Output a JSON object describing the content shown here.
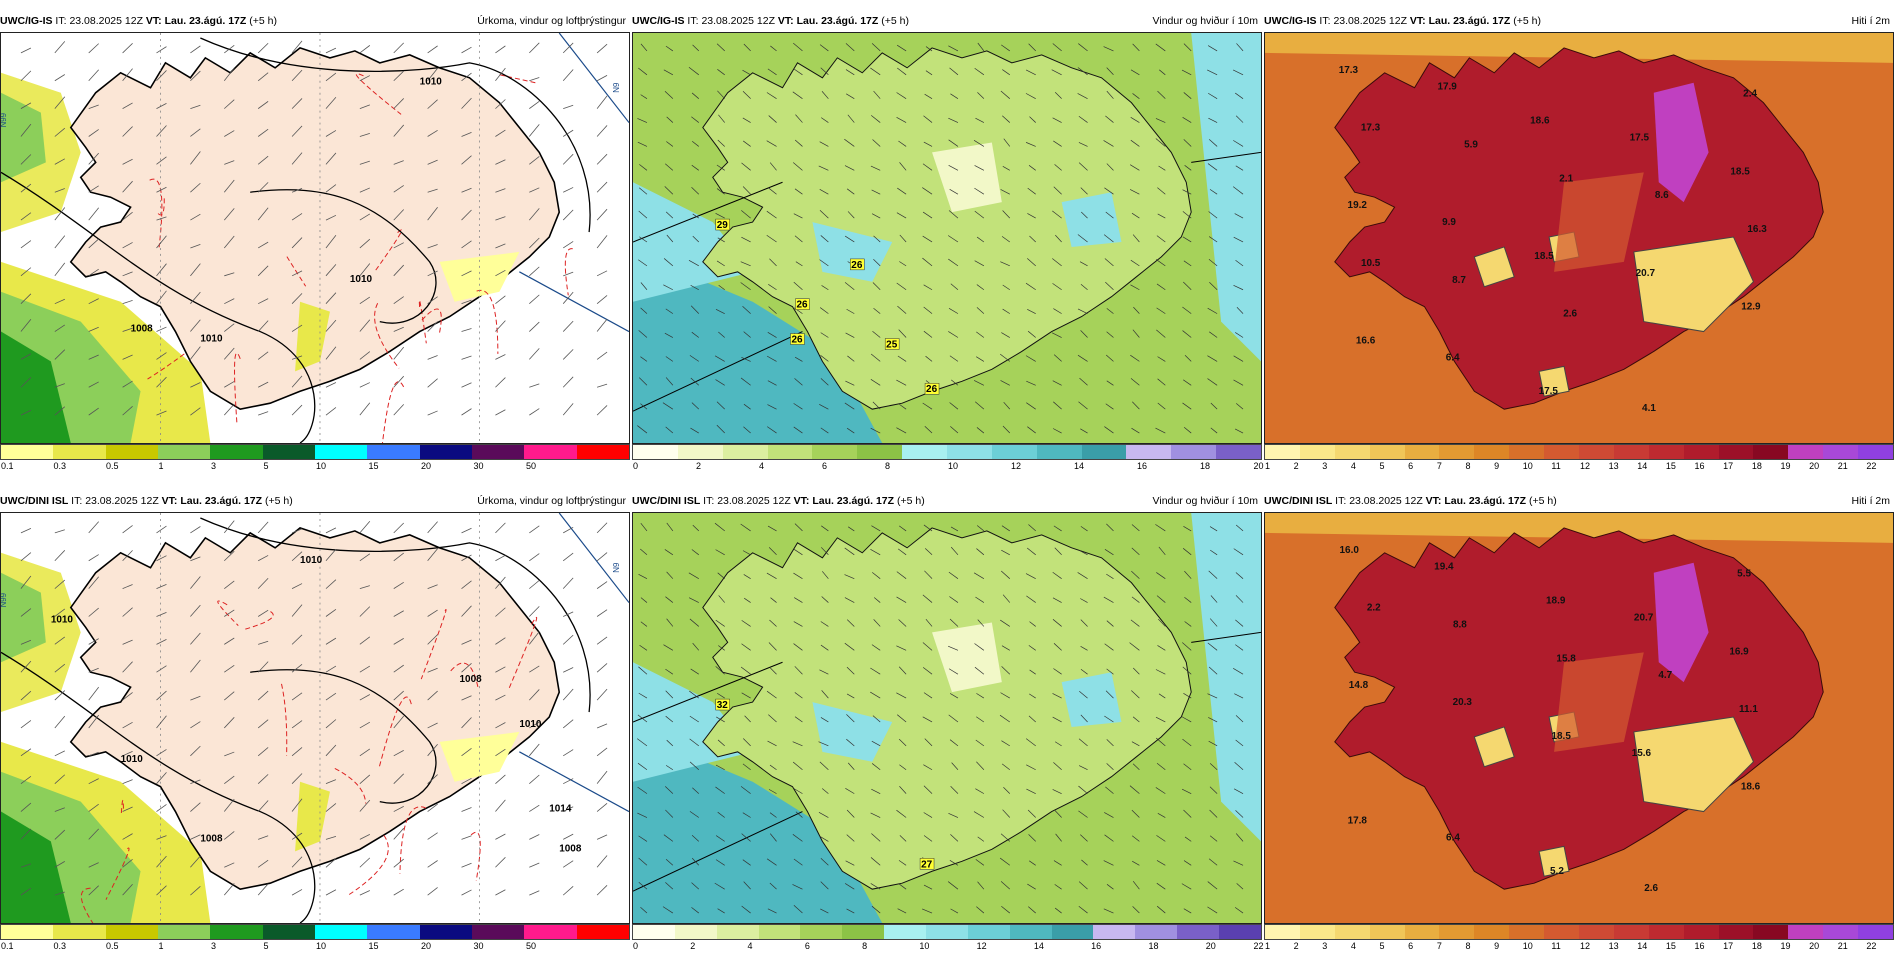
{
  "rows": [
    {
      "panels": [
        {
          "model": "UWC/IG-IS",
          "it_label": "IT:",
          "it": "23.08.2025 12Z",
          "vt_label": "VT:",
          "vt": "Lau. 23.ágú. 17Z",
          "lead": "(+5 h)",
          "param": "Úrkoma, vindur og loftþrýstingur"
        },
        {
          "model": "UWC/IG-IS",
          "it_label": "IT:",
          "it": "23.08.2025 12Z",
          "vt_label": "VT:",
          "vt": "Lau. 23.ágú. 17Z",
          "lead": "(+5 h)",
          "param": "Vindur og hviður í 10m"
        },
        {
          "model": "UWC/IG-IS",
          "it_label": "IT:",
          "it": "23.08.2025 12Z",
          "vt_label": "VT:",
          "vt": "Lau. 23.ágú. 17Z",
          "lead": "(+5 h)",
          "param": "Hiti í 2m"
        }
      ]
    },
    {
      "panels": [
        {
          "model": "UWC/DINI ISL",
          "it_label": "IT:",
          "it": "23.08.2025 12Z",
          "vt_label": "VT:",
          "vt": "Lau. 23.ágú. 17Z",
          "lead": "(+5 h)",
          "param": "Úrkoma, vindur og loftþrýstingur"
        },
        {
          "model": "UWC/DINI ISL",
          "it_label": "IT:",
          "it": "23.08.2025 12Z",
          "vt_label": "VT:",
          "vt": "Lau. 23.ágú. 17Z",
          "lead": "(+5 h)",
          "param": "Vindur og hviður í 10m"
        },
        {
          "model": "UWC/DINI ISL",
          "it_label": "IT:",
          "it": "23.08.2025 12Z",
          "vt_label": "VT:",
          "vt": "Lau. 23.ágú. 17Z",
          "lead": "(+5 h)",
          "param": "Hiti í 2m"
        }
      ]
    }
  ],
  "scales": {
    "precip": {
      "colors": [
        "#ffff99",
        "#e8e84a",
        "#c8c800",
        "#8ccf5a",
        "#1f9a1f",
        "#0a5a2a",
        "#00ffff",
        "#3a7bff",
        "#0a0a80",
        "#5a0a5a",
        "#ff1a8c",
        "#ff0000"
      ],
      "ticks": [
        "0.1",
        "0.3",
        "0.5",
        "1",
        "3",
        "5",
        "10",
        "15",
        "20",
        "30",
        "50"
      ]
    },
    "wind_top": {
      "colors": [
        "#ffffee",
        "#f2f8c8",
        "#dcefa0",
        "#c2e27a",
        "#a6d25a",
        "#8cc346",
        "#a8f0f0",
        "#8ee0e6",
        "#6ccfd6",
        "#4fb8c0",
        "#3a9ea8",
        "#c8b8f0",
        "#a090e0",
        "#7a60c8"
      ],
      "ticks": [
        "0",
        "2",
        "4",
        "6",
        "8",
        "10",
        "12",
        "14",
        "16",
        "18",
        "20"
      ]
    },
    "wind_bottom": {
      "colors": [
        "#ffffee",
        "#f2f8c8",
        "#dcefa0",
        "#c2e27a",
        "#a6d25a",
        "#8cc346",
        "#a8f0f0",
        "#8ee0e6",
        "#6ccfd6",
        "#4fb8c0",
        "#3a9ea8",
        "#c8b8f0",
        "#a090e0",
        "#7a60c8",
        "#5a40b0"
      ],
      "ticks": [
        "0",
        "2",
        "4",
        "6",
        "8",
        "10",
        "12",
        "14",
        "16",
        "18",
        "20",
        "22"
      ]
    },
    "temp": {
      "colors": [
        "#fff5b0",
        "#fbe88a",
        "#f5d870",
        "#f0c658",
        "#e8ae40",
        "#e39a32",
        "#dd8626",
        "#d8702a",
        "#d45a30",
        "#cf4a34",
        "#c83a34",
        "#be2a30",
        "#b01c2c",
        "#9c1028",
        "#880822",
        "#c040c0",
        "#a848d8",
        "#9040e0"
      ],
      "ticks": [
        "1",
        "2",
        "3",
        "4",
        "5",
        "6",
        "7",
        "8",
        "9",
        "10",
        "11",
        "12",
        "13",
        "14",
        "15",
        "16",
        "17",
        "18",
        "19",
        "20",
        "21",
        "22"
      ]
    }
  },
  "labels": {
    "top_wind": [
      "29",
      "26",
      "26",
      "26",
      "25",
      "26"
    ],
    "top_temp": [
      "17.3",
      "17.9",
      "18.6",
      "17.5",
      "18.5",
      "19.2",
      "9.9",
      "18.5",
      "20.7",
      "12.9",
      "16.6",
      "6.4",
      "17.5",
      "4.1",
      "2.4",
      "17.3",
      "5.9",
      "2.1",
      "8.6",
      "16.3",
      "10.5",
      "8.7",
      "2.6"
    ],
    "bottom_wind": [
      "32",
      "27"
    ],
    "bottom_temp": [
      "16.0",
      "19.4",
      "18.9",
      "20.7",
      "16.9",
      "14.8",
      "20.3",
      "18.5",
      "15.6",
      "18.6",
      "17.8",
      "6.4",
      "5.2",
      "2.6",
      "5.5",
      "2.2",
      "8.8",
      "15.8",
      "4.7",
      "11.1"
    ],
    "pressure": [
      "1010",
      "1010",
      "1008",
      "1010",
      "1008",
      "1010",
      "1014",
      "1008"
    ],
    "grid": [
      "N99",
      "N9",
      "N99"
    ]
  }
}
